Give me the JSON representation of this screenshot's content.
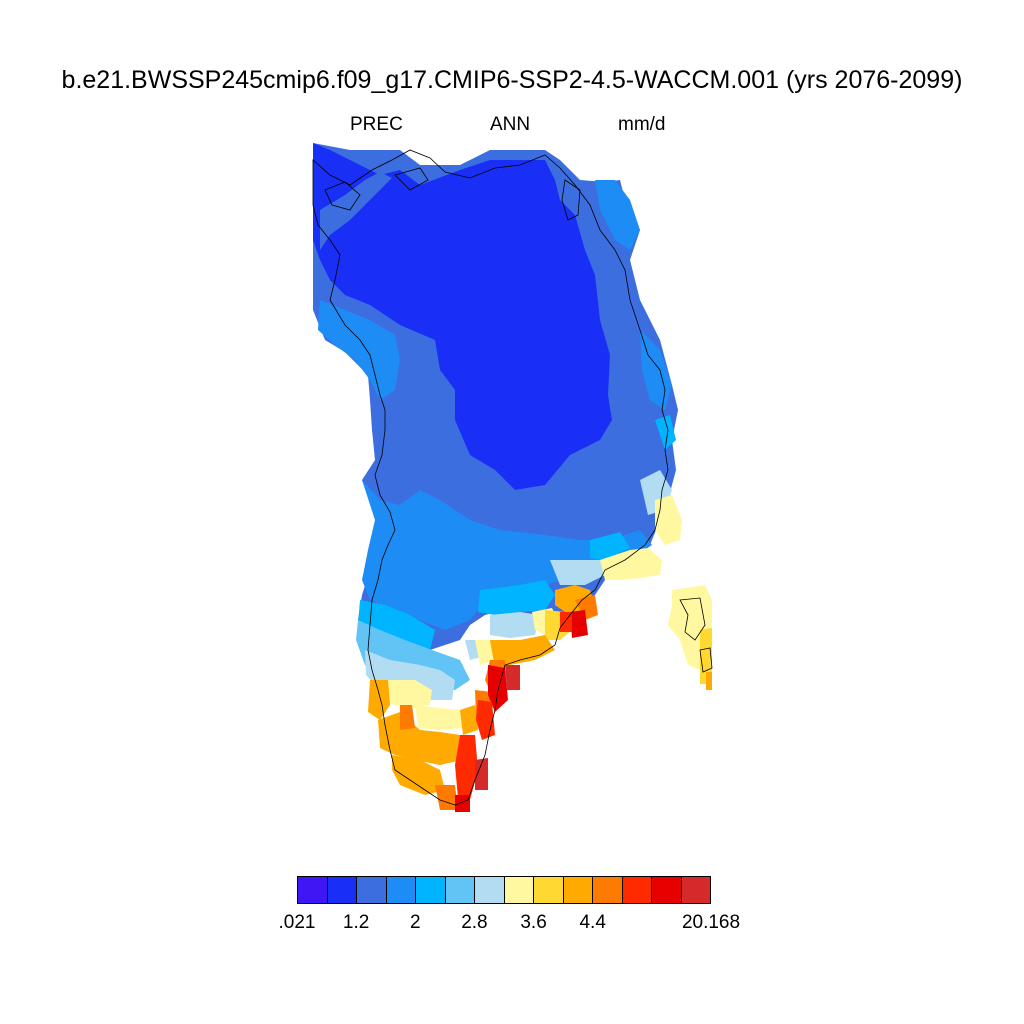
{
  "header": {
    "title": "b.e21.BWSSP245cmip6.f09_g17.CMIP6-SSP2-4.5-WACCM.001 (yrs 2076-2099)",
    "variable": "PREC",
    "period": "ANN",
    "units": "mm/d"
  },
  "colorbar": {
    "colors": [
      "#4016f5",
      "#1a2ff5",
      "#3c6ee0",
      "#1e8cf5",
      "#00b4ff",
      "#62c4f5",
      "#b2dcf2",
      "#fff8a0",
      "#ffd832",
      "#ffaa00",
      "#ff7a00",
      "#ff2a00",
      "#e60000",
      "#d42a2a"
    ],
    "labels": [
      ".021",
      "1.2",
      "2",
      "2.8",
      "3.6",
      "4.4",
      "20.168"
    ],
    "label_boundary_index": [
      0,
      2,
      4,
      6,
      8,
      10,
      14
    ]
  },
  "map": {
    "region": "Greenland",
    "colors": {
      "b1": "#1a2ff5",
      "b2": "#3c6ee0",
      "b3": "#1e8cf5",
      "b4": "#00b4ff",
      "b5": "#62c4f5",
      "b6": "#b2dcf2",
      "y1": "#fff8a0",
      "y2": "#ffd832",
      "o1": "#ffaa00",
      "o2": "#ff7a00",
      "r1": "#ff2a00",
      "r2": "#e60000",
      "r3": "#d42a2a"
    }
  }
}
